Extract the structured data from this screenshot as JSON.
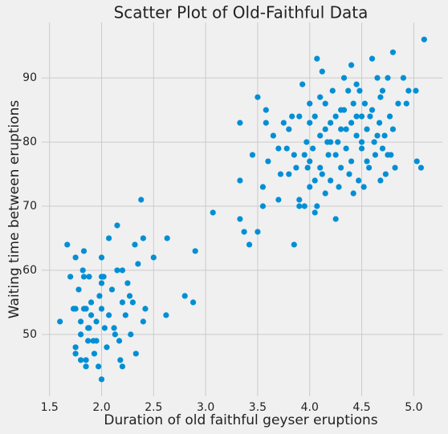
{
  "chart_data": {
    "type": "scatter",
    "title": "Scatter Plot of Old-Faithful Data",
    "x_label": "Duration of old faithful geyser eruptions",
    "y_label": "Waiting time between eruptions",
    "color": "#008fd5",
    "grid": true,
    "xlim": [
      1.425,
      5.275
    ],
    "ylim": [
      40.35,
      98.65
    ],
    "xticks": [
      1.5,
      {
        "value": 2,
        "label": "2.0"
      },
      2.5,
      {
        "value": 3,
        "label": "3.0"
      },
      3.5,
      {
        "value": 4,
        "label": "4.0"
      },
      4.5,
      {
        "value": 5,
        "label": "5.0"
      }
    ],
    "yticks": [
      50,
      60,
      70,
      80,
      90
    ],
    "x": [
      1.6,
      1.67,
      1.7,
      1.73,
      1.75,
      1.75,
      1.75,
      1.75,
      1.78,
      1.8,
      1.8,
      1.8,
      1.82,
      1.83,
      1.83,
      1.83,
      1.85,
      1.85,
      1.85,
      1.87,
      1.87,
      1.88,
      1.9,
      1.9,
      1.92,
      1.93,
      1.95,
      1.97,
      1.98,
      2.0,
      2.0,
      2.0,
      2.0,
      2.02,
      2.03,
      2.05,
      2.07,
      2.07,
      2.1,
      2.12,
      2.13,
      2.15,
      2.17,
      2.18,
      2.2,
      2.2,
      2.2,
      2.23,
      2.25,
      2.27,
      2.28,
      2.3,
      2.32,
      2.33,
      2.35,
      2.38,
      2.4,
      2.4,
      2.42,
      2.5,
      2.63,
      2.62,
      2.8,
      2.88,
      2.9,
      3.07,
      2.15,
      2.0,
      1.88,
      1.95,
      3.33,
      3.33,
      3.33,
      3.37,
      3.42,
      3.45,
      3.5,
      3.5,
      3.55,
      3.55,
      3.58,
      3.58,
      3.6,
      3.65,
      3.7,
      3.7,
      3.72,
      3.75,
      3.78,
      3.8,
      3.8,
      3.83,
      3.85,
      3.85,
      3.87,
      3.9,
      3.9,
      3.93,
      3.95,
      3.95,
      3.97,
      4.0,
      4.0,
      4.0,
      4.03,
      4.05,
      4.05,
      4.07,
      4.07,
      4.1,
      4.1,
      4.12,
      4.12,
      4.15,
      4.15,
      4.17,
      4.18,
      4.2,
      4.2,
      4.22,
      4.25,
      4.25,
      4.27,
      4.28,
      4.3,
      4.3,
      4.33,
      4.33,
      4.35,
      4.37,
      4.4,
      4.4,
      4.4,
      4.42,
      4.45,
      4.45,
      4.47,
      4.5,
      4.5,
      4.52,
      4.53,
      4.55,
      4.57,
      4.6,
      4.6,
      4.62,
      4.63,
      4.65,
      4.67,
      4.68,
      4.7,
      4.72,
      4.73,
      4.75,
      4.77,
      4.78,
      4.8,
      4.8,
      4.82,
      4.85,
      4.9,
      4.93,
      4.95,
      5.02,
      5.03,
      5.07,
      5.1,
      4.35,
      4.45,
      4.55,
      4.65,
      4.0,
      4.2,
      4.3,
      4.5,
      4.7,
      4.1,
      4.15,
      3.9,
      4.25,
      4.42,
      4.58,
      4.75,
      4.05,
      3.98,
      4.38,
      4.48,
      4.68
    ],
    "values": [
      52,
      64,
      59,
      54,
      62,
      48,
      47,
      54,
      57,
      52,
      50,
      46,
      60,
      63,
      59,
      54,
      46,
      45,
      54,
      51,
      49,
      59,
      55,
      53,
      49,
      47,
      52,
      45,
      56,
      43,
      62,
      58,
      54,
      59,
      51,
      48,
      53,
      65,
      57,
      51,
      50,
      67,
      49,
      46,
      55,
      45,
      60,
      53,
      58,
      56,
      50,
      55,
      64,
      47,
      61,
      71,
      65,
      52,
      54,
      62,
      65,
      53,
      56,
      55,
      63,
      69,
      60,
      59,
      51,
      49,
      83,
      74,
      68,
      66,
      64,
      78,
      87,
      66,
      73,
      70,
      85,
      83,
      77,
      81,
      71,
      79,
      75,
      83,
      79,
      75,
      82,
      84,
      64,
      78,
      76,
      71,
      84,
      89,
      78,
      70,
      80,
      86,
      77,
      73,
      79,
      69,
      84,
      93,
      70,
      81,
      76,
      91,
      75,
      86,
      72,
      80,
      78,
      83,
      74,
      88,
      78,
      68,
      80,
      73,
      82,
      76,
      90,
      85,
      79,
      88,
      92,
      83,
      77,
      72,
      81,
      89,
      74,
      84,
      79,
      73,
      86,
      82,
      76,
      93,
      85,
      80,
      78,
      90,
      83,
      74,
      88,
      81,
      75,
      90,
      84,
      78,
      94,
      82,
      76,
      86,
      90,
      86,
      88,
      88,
      77,
      76,
      96,
      82,
      84,
      77,
      81,
      83,
      80,
      85,
      80,
      79,
      87,
      82,
      70,
      84,
      86,
      84,
      78,
      74,
      76,
      75,
      88,
      87
    ]
  }
}
